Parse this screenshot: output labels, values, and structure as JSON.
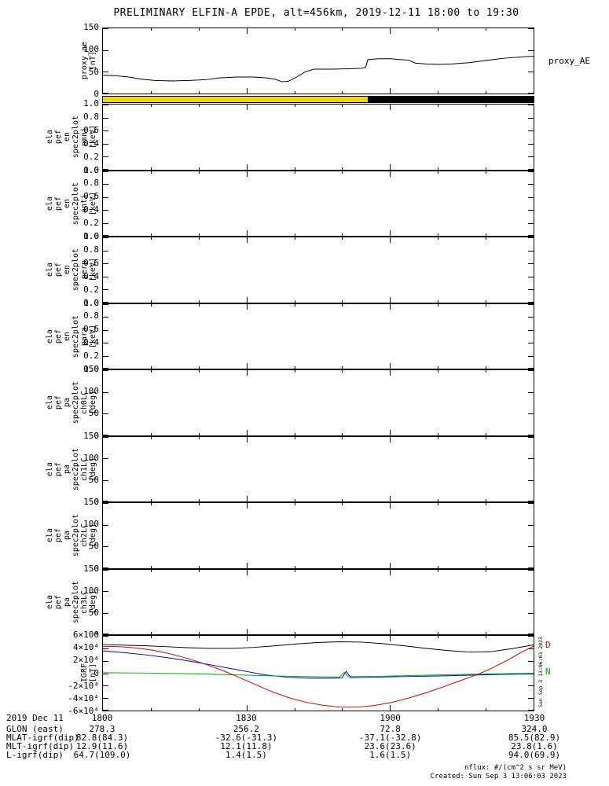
{
  "title": "PRELIMINARY ELFIN-A EPDE, alt=456km, 2019-12-11 18:00 to 19:30",
  "sun_bar": {
    "segments": [
      {
        "name": "sunlit",
        "color": "#f0d800",
        "frac": 0.615
      },
      {
        "name": "shadow",
        "color": "#000000",
        "frac": 0.385
      }
    ]
  },
  "panels": [
    {
      "id": "proxy_ae",
      "label_words": [
        "proxy_ae",
        "[nT]"
      ],
      "ticks": [
        "150",
        "100",
        "50",
        "0"
      ],
      "right_label": "proxy_AE",
      "chart": 0
    },
    {
      "id": "en_omni",
      "label_words": [
        "ela",
        "pef",
        "en",
        "spec2plot",
        "omni",
        "[keV]"
      ],
      "ticks": [
        "1.0",
        "0.8",
        "0.6",
        "0.4",
        "0.2",
        "0.0"
      ]
    },
    {
      "id": "en_anti",
      "label_words": [
        "ela",
        "pef",
        "en",
        "spec2plot",
        "anti",
        "[keV]"
      ],
      "ticks": [
        "1.0",
        "0.8",
        "0.6",
        "0.4",
        "0.2",
        "0.0"
      ]
    },
    {
      "id": "en_perp",
      "label_words": [
        "ela",
        "pef",
        "en",
        "spec2plot",
        "perp",
        "[keV]"
      ],
      "ticks": [
        "1.0",
        "0.8",
        "0.6",
        "0.4",
        "0.2",
        "0.0"
      ]
    },
    {
      "id": "en_para",
      "label_words": [
        "ela",
        "pef",
        "en",
        "spec2plot",
        "para",
        "[keV]"
      ],
      "ticks": [
        "1.0",
        "0.8",
        "0.6",
        "0.4",
        "0.2",
        "0.0"
      ]
    },
    {
      "id": "pa_ch0lc",
      "label_words": [
        "ela",
        "pef",
        "pa",
        "spec2plot",
        "ch0LC",
        "[deg]"
      ],
      "ticks": [
        "150",
        "100",
        "50",
        "0"
      ]
    },
    {
      "id": "pa_ch1lc",
      "label_words": [
        "ela",
        "pef",
        "pa",
        "spec2plot",
        "ch1LC",
        "[deg]"
      ],
      "ticks": [
        "150",
        "100",
        "50",
        "0"
      ]
    },
    {
      "id": "pa_ch2lc",
      "label_words": [
        "ela",
        "pef",
        "pa",
        "spec2plot",
        "ch2LC",
        "[deg]"
      ],
      "ticks": [
        "150",
        "100",
        "50",
        "0"
      ]
    },
    {
      "id": "pa_ch3lc",
      "label_words": [
        "ela",
        "pef",
        "pa",
        "spec2plot",
        "ch3LC",
        "[deg]"
      ],
      "ticks": [
        "150",
        "100",
        "50",
        "0"
      ]
    },
    {
      "id": "igrf",
      "label_words": [
        "IGRF",
        "[nT]"
      ],
      "ticks": [
        "6×10⁴",
        "4×10⁴",
        "2×10⁴",
        "0",
        "-2×10⁴",
        "-4×10⁴",
        "-6×10⁴"
      ],
      "chart": 3,
      "right_labels": [
        {
          "text": "D",
          "color": "#cc0000",
          "frac_y": 0.12
        },
        {
          "text": "N",
          "color": "#00aa00",
          "frac_y": 0.47
        }
      ],
      "side_note": "Sun Sep  3 13:06:03 2023"
    }
  ],
  "chart_data": [
    {
      "type": "line",
      "title": "proxy_AE",
      "ylabel": "proxy_ae [nT]",
      "ylim": [
        0,
        150
      ],
      "yticks": [
        0,
        50,
        100,
        150
      ],
      "x_ticks": [
        "1800",
        "1830",
        "1900",
        "1930"
      ],
      "x_range": "2019-12-11 18:00 to 19:30",
      "grid": false,
      "legend_position": "right",
      "series": [
        {
          "name": "proxy_AE",
          "color": "#000000",
          "points": [
            [
              0,
              42
            ],
            [
              0.03,
              41
            ],
            [
              0.06,
              38
            ],
            [
              0.09,
              33
            ],
            [
              0.12,
              30
            ],
            [
              0.16,
              29
            ],
            [
              0.2,
              30
            ],
            [
              0.24,
              32
            ],
            [
              0.27,
              36
            ],
            [
              0.31,
              38
            ],
            [
              0.35,
              38
            ],
            [
              0.38,
              36
            ],
            [
              0.4,
              33
            ],
            [
              0.415,
              27
            ],
            [
              0.43,
              28
            ],
            [
              0.45,
              38
            ],
            [
              0.47,
              50
            ],
            [
              0.49,
              56
            ],
            [
              0.53,
              56
            ],
            [
              0.57,
              57
            ],
            [
              0.6,
              58
            ],
            [
              0.61,
              60
            ],
            [
              0.615,
              78
            ],
            [
              0.64,
              80
            ],
            [
              0.67,
              80
            ],
            [
              0.69,
              78
            ],
            [
              0.71,
              77
            ],
            [
              0.725,
              70
            ],
            [
              0.75,
              68
            ],
            [
              0.78,
              67
            ],
            [
              0.81,
              68
            ],
            [
              0.85,
              71
            ],
            [
              0.89,
              76
            ],
            [
              0.93,
              81
            ],
            [
              0.97,
              84
            ],
            [
              1,
              86
            ]
          ]
        }
      ]
    },
    {
      "type": "heatmap",
      "panels": [
        "ela_pef_en_spec2plot_omni",
        "ela_pef_en_spec2plot_anti",
        "ela_pef_en_spec2plot_perp",
        "ela_pef_en_spec2plot_para"
      ],
      "ylabel": "[keV]",
      "ylim": [
        0,
        1
      ],
      "yticks": [
        0.0,
        0.2,
        0.4,
        0.6,
        0.8,
        1.0
      ],
      "note": "panels are blank - no spectrogram data rendered"
    },
    {
      "type": "heatmap",
      "panels": [
        "ela_pef_pa_spec2plot_ch0LC",
        "ela_pef_pa_spec2plot_ch1LC",
        "ela_pef_pa_spec2plot_ch2LC",
        "ela_pef_pa_spec2plot_ch3LC"
      ],
      "ylabel": "[deg]",
      "ylim": [
        0,
        150
      ],
      "yticks": [
        0,
        50,
        100,
        150
      ],
      "note": "panels are blank - no spectrogram data rendered"
    },
    {
      "type": "line",
      "title": "IGRF",
      "ylabel": "IGRF [nT]",
      "ylim": [
        -60000,
        60000
      ],
      "ytick_labels": [
        "6×10⁴",
        "4×10⁴",
        "2×10⁴",
        "0",
        "-2×10⁴",
        "-4×10⁴",
        "-6×10⁴"
      ],
      "grid": false,
      "series": [
        {
          "name": "igrf-black",
          "color": "#000000",
          "points": [
            [
              0,
              46000
            ],
            [
              0.05,
              45000
            ],
            [
              0.1,
              44000
            ],
            [
              0.15,
              42500
            ],
            [
              0.2,
              41000
            ],
            [
              0.25,
              40000
            ],
            [
              0.3,
              40000
            ],
            [
              0.35,
              41500
            ],
            [
              0.4,
              44000
            ],
            [
              0.45,
              47000
            ],
            [
              0.5,
              49500
            ],
            [
              0.55,
              50500
            ],
            [
              0.6,
              50000
            ],
            [
              0.65,
              47500
            ],
            [
              0.7,
              44000
            ],
            [
              0.75,
              40000
            ],
            [
              0.8,
              36500
            ],
            [
              0.85,
              34000
            ],
            [
              0.9,
              34500
            ],
            [
              0.95,
              39500
            ],
            [
              1,
              45500
            ]
          ]
        },
        {
          "name": "igrf-blue",
          "color": "#0000cc",
          "points": [
            [
              0,
              36000
            ],
            [
              0.05,
              33000
            ],
            [
              0.1,
              29500
            ],
            [
              0.15,
              25000
            ],
            [
              0.2,
              19500
            ],
            [
              0.25,
              13500
            ],
            [
              0.3,
              7000
            ],
            [
              0.34,
              2000
            ],
            [
              0.38,
              -3000
            ],
            [
              0.43,
              -6500
            ],
            [
              0.48,
              -8000
            ],
            [
              0.53,
              -8000
            ],
            [
              0.555,
              -7500
            ],
            [
              0.565,
              3000
            ],
            [
              0.575,
              -7000
            ],
            [
              0.62,
              -6500
            ],
            [
              0.7,
              -5500
            ],
            [
              0.78,
              -4500
            ],
            [
              0.86,
              -3000
            ],
            [
              0.93,
              -2000
            ],
            [
              1,
              -1200
            ]
          ]
        },
        {
          "name": "igrf-green",
          "color": "#00aa00",
          "points": [
            [
              0,
              800
            ],
            [
              0.1,
              200
            ],
            [
              0.2,
              -800
            ],
            [
              0.3,
              -2500
            ],
            [
              0.4,
              -4500
            ],
            [
              0.5,
              -5800
            ],
            [
              0.55,
              -6000
            ],
            [
              0.56,
              1500
            ],
            [
              0.57,
              -5500
            ],
            [
              0.65,
              -4800
            ],
            [
              0.73,
              -3500
            ],
            [
              0.81,
              -2200
            ],
            [
              0.89,
              -1200
            ],
            [
              0.95,
              -500
            ],
            [
              1,
              -100
            ]
          ]
        },
        {
          "name": "igrf-red",
          "color": "#cc0000",
          "points": [
            [
              0,
              43000
            ],
            [
              0.04,
              42500
            ],
            [
              0.08,
              40500
            ],
            [
              0.12,
              36500
            ],
            [
              0.16,
              30500
            ],
            [
              0.2,
              23000
            ],
            [
              0.24,
              14000
            ],
            [
              0.28,
              4000
            ],
            [
              0.31,
              -5000
            ],
            [
              0.35,
              -17000
            ],
            [
              0.39,
              -29000
            ],
            [
              0.43,
              -39000
            ],
            [
              0.47,
              -46500
            ],
            [
              0.51,
              -51500
            ],
            [
              0.55,
              -54500
            ],
            [
              0.59,
              -54500
            ],
            [
              0.63,
              -52000
            ],
            [
              0.67,
              -47000
            ],
            [
              0.71,
              -40000
            ],
            [
              0.75,
              -31500
            ],
            [
              0.79,
              -22000
            ],
            [
              0.83,
              -12000
            ],
            [
              0.87,
              -2000
            ],
            [
              0.9,
              7000
            ],
            [
              0.94,
              21000
            ],
            [
              0.97,
              33000
            ],
            [
              1,
              43500
            ]
          ]
        }
      ]
    }
  ],
  "bottom_table": {
    "rows": [
      {
        "label": "2019 Dec 11",
        "values": [
          "1800",
          "1830",
          "1900",
          "1930"
        ]
      },
      {
        "label": "GLON (east)",
        "values": [
          "278.3",
          "256.2",
          "72.8",
          "324.0"
        ]
      },
      {
        "label": "MLAT-igrf(dip)",
        "values": [
          "82.8(84.3)",
          "-32.6(-31.3)",
          "-37.1(-32.8)",
          "85.5(82.9)"
        ]
      },
      {
        "label": "MLT-igrf(dip)",
        "values": [
          "12.9(11.6)",
          "12.1(11.8)",
          "23.6(23.6)",
          "23.8(1.6)"
        ]
      },
      {
        "label": "L-igrf(dip)",
        "values": [
          "64.7(109.0)",
          "1.4(1.5)",
          "1.6(1.5)",
          "94.0(69.9)"
        ]
      }
    ]
  },
  "footer": {
    "flux_units": "nflux: #/(cm^2 s sr MeV)",
    "created": "Created: Sun Sep  3 13:06:03 2023"
  }
}
